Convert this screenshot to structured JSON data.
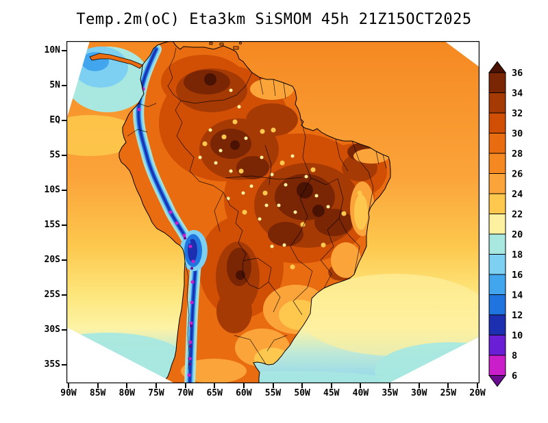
{
  "title": "Temp.2m(oC) Eta3km SiSMOM 45h 21Z15OCT2025",
  "axes": {
    "lat_ticks": [
      "10N",
      "5N",
      "EQ",
      "5S",
      "10S",
      "15S",
      "20S",
      "25S",
      "30S",
      "35S"
    ],
    "lon_ticks": [
      "90W",
      "85W",
      "80W",
      "75W",
      "70W",
      "65W",
      "60W",
      "55W",
      "50W",
      "45W",
      "40W",
      "35W",
      "30W",
      "25W",
      "20W"
    ]
  },
  "colorbar": {
    "tick_labels": [
      "36",
      "34",
      "32",
      "30",
      "28",
      "26",
      "24",
      "22",
      "20",
      "18",
      "16",
      "14",
      "12",
      "10",
      "8",
      "6"
    ],
    "segment_colors_top_to_bottom": [
      "#4a1203",
      "#7a2503",
      "#a63a04",
      "#d14f05",
      "#ea6c10",
      "#f58821",
      "#fba43a",
      "#fdc84d",
      "#fdf09e",
      "#a8e8e0",
      "#7dd0f2",
      "#41a6ee",
      "#1f74e0",
      "#1b2fb0",
      "#6a1ed6",
      "#cb1ecb",
      "#6a0a8e"
    ]
  },
  "chart_data": {
    "type": "heatmap",
    "field": "Temp.2m(oC)",
    "model": "Eta3km SiSMOM",
    "forecast_hour": "45h",
    "valid_time": "21Z15OCT2025",
    "lon_range": [
      "90W",
      "20W"
    ],
    "lat_range": [
      "10N",
      "35S"
    ],
    "contour_levels_oC": [
      36,
      34,
      32,
      30,
      28,
      26,
      24,
      22,
      20,
      18,
      16,
      14,
      12,
      10,
      8,
      6
    ],
    "legend_position": "right",
    "grid": "off"
  }
}
